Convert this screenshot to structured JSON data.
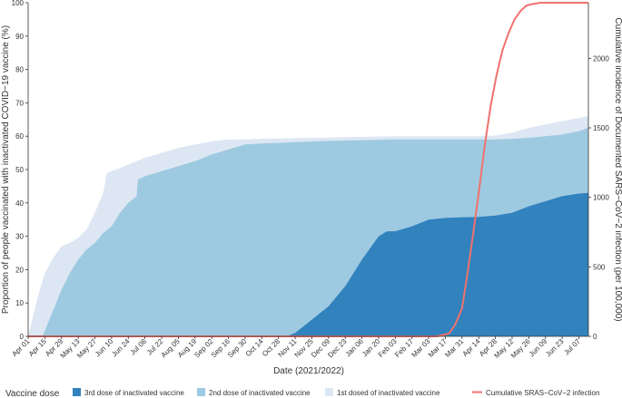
{
  "chart_data": {
    "type": "area",
    "xlabel": "Date (2021/2022)",
    "ylabel_left": "Proportion of people vaccinated with inactivated COVID−19 vaccine (%)",
    "ylabel_right": "Cumulative incidence of Documented SARS−CoV−2 infection (per 100,000)",
    "x_start": "2021-04-01",
    "x_end": "2022-07-15",
    "ylim_left": [
      0,
      100
    ],
    "yticks_left": [
      "0",
      "10",
      "20",
      "30",
      "40",
      "50",
      "60",
      "70",
      "80",
      "90",
      "100"
    ],
    "ylim_right": [
      0,
      2400
    ],
    "yticks_right": [
      "0",
      "500",
      "1000",
      "1500",
      "2000"
    ],
    "xtick_dates": [
      "2021-04-01",
      "2021-04-15",
      "2021-04-29",
      "2021-05-13",
      "2021-05-27",
      "2021-06-10",
      "2021-06-24",
      "2021-07-08",
      "2021-07-22",
      "2021-08-05",
      "2021-08-19",
      "2021-09-02",
      "2021-09-16",
      "2021-09-30",
      "2021-10-14",
      "2021-10-28",
      "2021-11-11",
      "2021-11-25",
      "2021-12-09",
      "2021-12-23",
      "2022-01-06",
      "2022-01-20",
      "2022-02-03",
      "2022-02-17",
      "2022-03-03",
      "2022-03-17",
      "2022-03-31",
      "2022-04-14",
      "2022-04-28",
      "2022-05-12",
      "2022-05-26",
      "2022-06-09",
      "2022-06-23",
      "2022-07-07"
    ],
    "xtick_labels": [
      "Apr 01",
      "Apr 15",
      "Apr 29",
      "May 13",
      "May 27",
      "Jun 10",
      "Jun 24",
      "Jul 08",
      "Jul 22",
      "Aug 05",
      "Aug 19",
      "Sep 02",
      "Sep 16",
      "Sep 30",
      "Oct 14",
      "Oct 28",
      "Nov 11",
      "Nov 25",
      "Dec 09",
      "Dec 23",
      "Jan 06",
      "Jan 20",
      "Feb 03",
      "Feb 17",
      "Mar 03",
      "Mar 17",
      "Mar 31",
      "Apr 14",
      "Apr 28",
      "May 12",
      "May 26",
      "Jun 09",
      "Jun 23",
      "Jul 07"
    ],
    "series": [
      {
        "name": "1st dosed of inactivated vaccine",
        "color": "#dde7f3",
        "x": [
          "2021-04-01",
          "2021-04-05",
          "2021-04-10",
          "2021-04-15",
          "2021-04-22",
          "2021-04-29",
          "2021-05-06",
          "2021-05-13",
          "2021-05-20",
          "2021-05-27",
          "2021-06-03",
          "2021-06-06",
          "2021-06-10",
          "2021-06-17",
          "2021-06-24",
          "2021-07-01",
          "2021-07-08",
          "2021-07-22",
          "2021-08-05",
          "2021-08-19",
          "2021-09-02",
          "2021-09-16",
          "2021-09-30",
          "2021-10-14",
          "2021-10-28",
          "2021-11-11",
          "2021-11-25",
          "2021-12-09",
          "2021-12-23",
          "2022-01-06",
          "2022-01-20",
          "2022-02-03",
          "2022-02-17",
          "2022-03-03",
          "2022-03-17",
          "2022-03-31",
          "2022-04-14",
          "2022-04-28",
          "2022-05-12",
          "2022-05-26",
          "2022-06-09",
          "2022-06-23",
          "2022-07-07",
          "2022-07-15"
        ],
        "values": [
          0,
          6,
          13,
          19,
          23.5,
          27,
          28,
          29.5,
          32,
          37,
          43,
          49,
          49.5,
          50.5,
          51.5,
          52.5,
          53.5,
          55,
          56.5,
          57.5,
          58.5,
          59,
          59,
          59.2,
          59.3,
          59.4,
          59.5,
          59.6,
          59.7,
          59.8,
          59.9,
          60,
          60,
          60,
          60,
          60,
          60,
          60.2,
          61,
          62.5,
          63.5,
          64.5,
          65.5,
          66
        ]
      },
      {
        "name": "2nd dose of inactivated vaccine",
        "color": "#9ecae1",
        "x": [
          "2021-04-01",
          "2021-04-10",
          "2021-04-13",
          "2021-04-20",
          "2021-04-29",
          "2021-05-06",
          "2021-05-13",
          "2021-05-20",
          "2021-05-27",
          "2021-06-03",
          "2021-06-10",
          "2021-06-17",
          "2021-06-24",
          "2021-07-01",
          "2021-07-02",
          "2021-07-08",
          "2021-07-22",
          "2021-08-05",
          "2021-08-19",
          "2021-09-02",
          "2021-09-16",
          "2021-09-30",
          "2021-10-14",
          "2021-10-28",
          "2021-11-11",
          "2021-11-25",
          "2021-12-09",
          "2021-12-23",
          "2022-01-06",
          "2022-01-20",
          "2022-02-03",
          "2022-02-17",
          "2022-03-03",
          "2022-03-17",
          "2022-03-31",
          "2022-04-14",
          "2022-04-28",
          "2022-05-12",
          "2022-05-26",
          "2022-06-09",
          "2022-06-23",
          "2022-07-07",
          "2022-07-15"
        ],
        "values": [
          0,
          0,
          0,
          6,
          14,
          19,
          23,
          26,
          28,
          31,
          33,
          37,
          40,
          42,
          47,
          48,
          49.5,
          51,
          52.5,
          54.5,
          56,
          57.5,
          57.8,
          58,
          58.2,
          58.4,
          58.6,
          58.7,
          58.8,
          58.9,
          59,
          59,
          59,
          59,
          59,
          59,
          59,
          59.2,
          59.5,
          60,
          60.5,
          61.5,
          62.5
        ]
      },
      {
        "name": "3rd dose of inactivated vaccine",
        "color": "#3182bd",
        "x": [
          "2021-04-01",
          "2021-11-04",
          "2021-11-11",
          "2021-11-25",
          "2021-12-09",
          "2021-12-23",
          "2022-01-06",
          "2022-01-20",
          "2022-01-27",
          "2022-02-03",
          "2022-02-17",
          "2022-03-03",
          "2022-03-17",
          "2022-03-31",
          "2022-04-14",
          "2022-04-28",
          "2022-05-12",
          "2022-05-26",
          "2022-06-09",
          "2022-06-23",
          "2022-07-07",
          "2022-07-15"
        ],
        "values": [
          0,
          0,
          1,
          5,
          9,
          15,
          23,
          30,
          31.5,
          31.5,
          33,
          35,
          35.5,
          35.7,
          35.8,
          36.2,
          37,
          39,
          40.5,
          42,
          42.8,
          43
        ]
      },
      {
        "name": "Cumulative SRAS−CoV−2 infection",
        "color": "#f1716e",
        "axis": "right",
        "x": [
          "2021-04-01",
          "2022-03-10",
          "2022-03-20",
          "2022-03-25",
          "2022-03-31",
          "2022-04-04",
          "2022-04-09",
          "2022-04-14",
          "2022-04-19",
          "2022-04-24",
          "2022-04-29",
          "2022-05-04",
          "2022-05-09",
          "2022-05-14",
          "2022-05-19",
          "2022-05-24",
          "2022-05-29",
          "2022-06-05",
          "2022-07-15"
        ],
        "values": [
          0,
          0,
          20,
          80,
          200,
          420,
          720,
          1030,
          1370,
          1660,
          1880,
          2060,
          2180,
          2280,
          2340,
          2380,
          2390,
          2400,
          2400
        ]
      }
    ],
    "legend": {
      "title": "Vaccine dose",
      "items": [
        "3rd dose of inactivated vaccine",
        "2nd dose of inactivated vaccine",
        "1st dosed of inactivated vaccine",
        "Cumulative SRAS−CoV−2 infection"
      ],
      "placement": "bottom"
    }
  }
}
